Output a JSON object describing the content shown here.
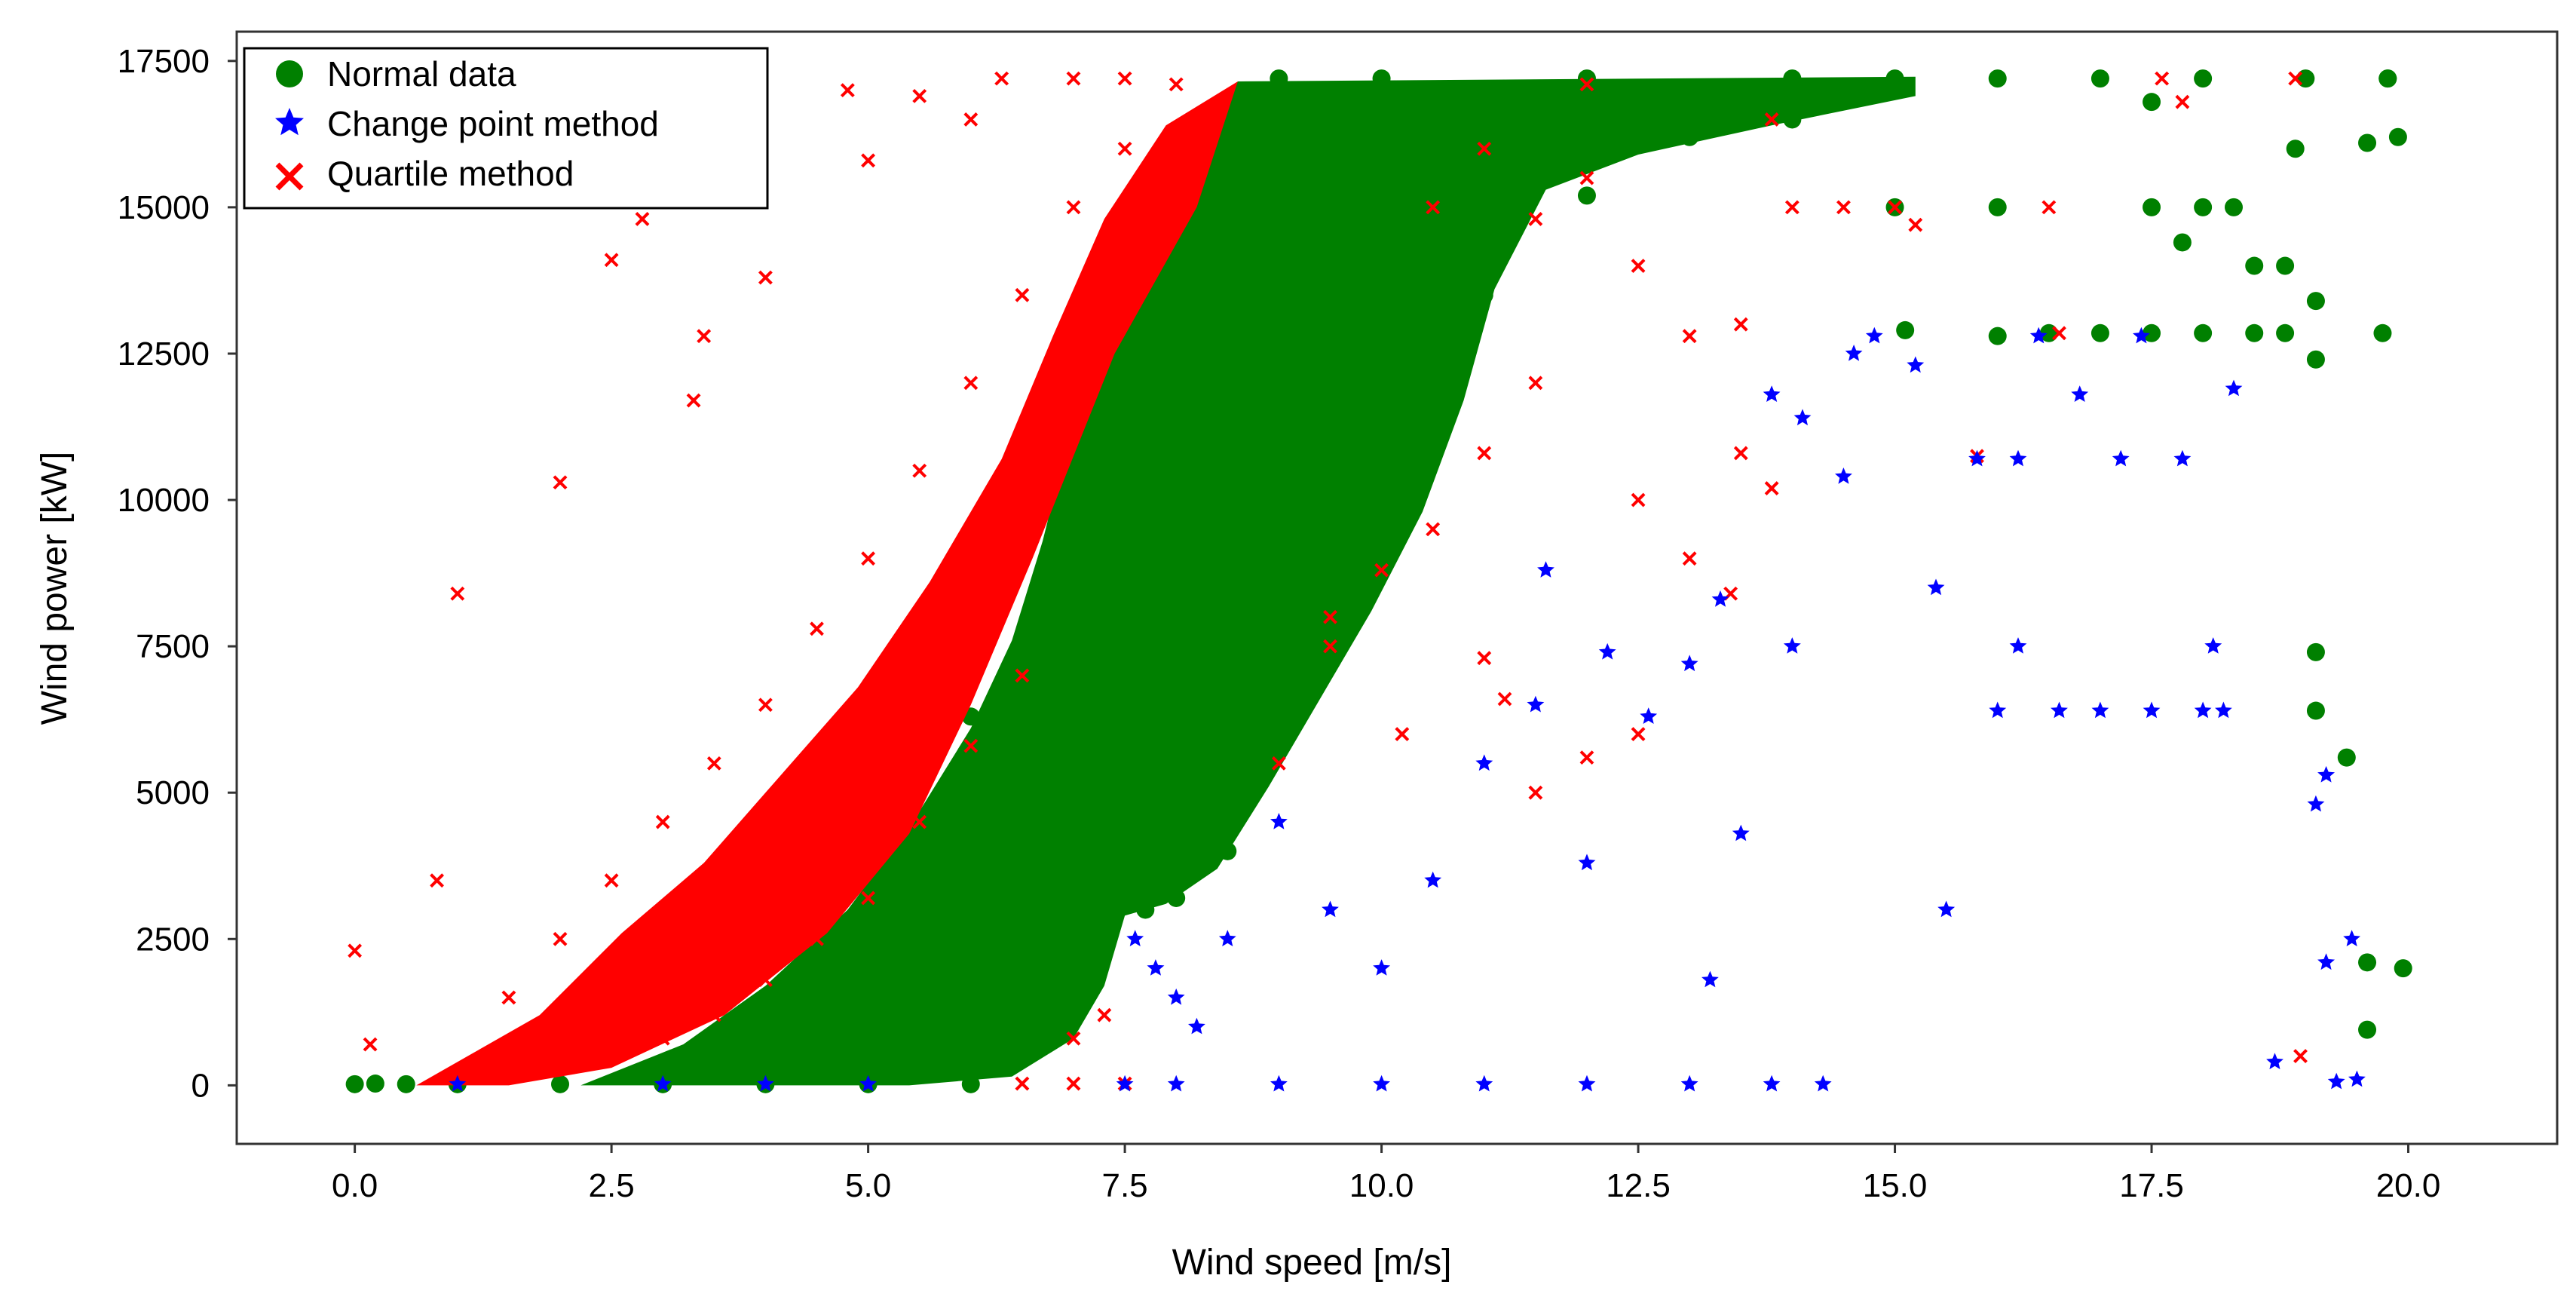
{
  "chart_data": {
    "type": "scatter",
    "title": "",
    "xlabel": "Wind speed [m/s]",
    "ylabel": "Wind power [kW]",
    "xlim": [
      -1.15,
      21.45
    ],
    "ylim": [
      -1000,
      18000
    ],
    "xticks": [
      0.0,
      2.5,
      5.0,
      7.5,
      10.0,
      12.5,
      15.0,
      17.5,
      20.0
    ],
    "xtick_labels": [
      "0.0",
      "2.5",
      "5.0",
      "7.5",
      "10.0",
      "12.5",
      "15.0",
      "17.5",
      "20.0"
    ],
    "yticks": [
      0,
      2500,
      5000,
      7500,
      10000,
      12500,
      15000,
      17500
    ],
    "ytick_labels": [
      "0",
      "2500",
      "5000",
      "7500",
      "10000",
      "12500",
      "15000",
      "17500"
    ],
    "grid": false,
    "legend_position": "top-left",
    "series": [
      {
        "name": "Normal data",
        "marker": "circle",
        "color": "#008000",
        "points": [
          [
            0.0,
            20
          ],
          [
            0.2,
            30
          ],
          [
            0.5,
            20
          ],
          [
            1.0,
            20
          ],
          [
            2.0,
            20
          ],
          [
            3.0,
            20
          ],
          [
            4.0,
            20
          ],
          [
            5.0,
            20
          ],
          [
            6.0,
            20
          ],
          [
            3.0,
            900
          ],
          [
            3.5,
            1500
          ],
          [
            4.0,
            2400
          ],
          [
            4.5,
            3200
          ],
          [
            5.0,
            4200
          ],
          [
            5.5,
            5200
          ],
          [
            6.0,
            6300
          ],
          [
            6.5,
            7600
          ],
          [
            6.5,
            9000
          ],
          [
            7.0,
            10500
          ],
          [
            7.0,
            12000
          ],
          [
            7.5,
            13200
          ],
          [
            8.0,
            15000
          ],
          [
            8.5,
            16800
          ],
          [
            9.0,
            17200
          ],
          [
            10.0,
            17200
          ],
          [
            12.0,
            17200
          ],
          [
            14.0,
            17200
          ],
          [
            15.0,
            17200
          ],
          [
            16.0,
            17200
          ],
          [
            17.0,
            17200
          ],
          [
            18.0,
            17200
          ],
          [
            19.0,
            17200
          ],
          [
            19.8,
            17200
          ],
          [
            8.5,
            4000
          ],
          [
            9.0,
            6000
          ],
          [
            9.5,
            8000
          ],
          [
            10.0,
            10500
          ],
          [
            10.5,
            12000
          ],
          [
            11.0,
            13500
          ],
          [
            12.0,
            15200
          ],
          [
            13.0,
            16200
          ],
          [
            14.0,
            16500
          ],
          [
            15.0,
            15000
          ],
          [
            16.0,
            15000
          ],
          [
            17.5,
            15000
          ],
          [
            18.0,
            15000
          ],
          [
            18.3,
            15000
          ],
          [
            15.1,
            12900
          ],
          [
            16.0,
            12800
          ],
          [
            16.5,
            12850
          ],
          [
            17.0,
            12850
          ],
          [
            17.5,
            12850
          ],
          [
            18.0,
            12850
          ],
          [
            18.5,
            12850
          ],
          [
            18.8,
            12850
          ],
          [
            18.8,
            14000
          ],
          [
            18.9,
            16000
          ],
          [
            19.1,
            13400
          ],
          [
            19.1,
            12400
          ],
          [
            19.1,
            7400
          ],
          [
            19.1,
            6400
          ],
          [
            19.4,
            5600
          ],
          [
            19.6,
            2100
          ],
          [
            19.6,
            950
          ],
          [
            19.75,
            12850
          ],
          [
            19.8,
            17200
          ],
          [
            19.9,
            16200
          ],
          [
            19.95,
            2000
          ],
          [
            19.6,
            16100
          ],
          [
            17.8,
            14400
          ],
          [
            17.5,
            16800
          ],
          [
            18.5,
            14000
          ],
          [
            7.7,
            3000
          ],
          [
            8.0,
            3200
          ],
          [
            7.0,
            1500
          ],
          [
            6.5,
            600
          ]
        ]
      },
      {
        "name": "Change point method",
        "marker": "star",
        "color": "#0000ff",
        "points": [
          [
            7.5,
            20
          ],
          [
            8.0,
            20
          ],
          [
            9.0,
            20
          ],
          [
            10.0,
            20
          ],
          [
            11.0,
            20
          ],
          [
            12.0,
            20
          ],
          [
            13.0,
            20
          ],
          [
            13.8,
            20
          ],
          [
            14.3,
            20
          ],
          [
            7.6,
            2500
          ],
          [
            7.8,
            2000
          ],
          [
            8.0,
            1500
          ],
          [
            8.2,
            1000
          ],
          [
            8.5,
            2500
          ],
          [
            9.0,
            4500
          ],
          [
            9.5,
            3000
          ],
          [
            10.0,
            2000
          ],
          [
            10.5,
            3500
          ],
          [
            11.0,
            5500
          ],
          [
            11.5,
            6500
          ],
          [
            11.6,
            8800
          ],
          [
            12.0,
            3800
          ],
          [
            12.2,
            7400
          ],
          [
            12.6,
            6300
          ],
          [
            13.0,
            7200
          ],
          [
            13.3,
            8300
          ],
          [
            13.5,
            4300
          ],
          [
            13.2,
            1800
          ],
          [
            13.8,
            11800
          ],
          [
            14.0,
            7500
          ],
          [
            14.1,
            11400
          ],
          [
            14.5,
            10400
          ],
          [
            14.6,
            12500
          ],
          [
            14.8,
            12800
          ],
          [
            15.2,
            12300
          ],
          [
            15.4,
            8500
          ],
          [
            15.5,
            3000
          ],
          [
            15.8,
            10700
          ],
          [
            16.0,
            6400
          ],
          [
            16.2,
            10700
          ],
          [
            16.2,
            7500
          ],
          [
            16.4,
            12800
          ],
          [
            16.6,
            6400
          ],
          [
            16.8,
            11800
          ],
          [
            17.0,
            6400
          ],
          [
            17.2,
            10700
          ],
          [
            17.5,
            6400
          ],
          [
            17.8,
            10700
          ],
          [
            17.4,
            12800
          ],
          [
            18.0,
            6400
          ],
          [
            18.1,
            7500
          ],
          [
            18.2,
            6400
          ],
          [
            18.3,
            11900
          ],
          [
            18.7,
            400
          ],
          [
            19.1,
            4800
          ],
          [
            19.2,
            5300
          ],
          [
            19.2,
            2100
          ],
          [
            19.3,
            60
          ],
          [
            19.45,
            2500
          ],
          [
            19.5,
            100
          ],
          [
            3.0,
            20
          ],
          [
            4.0,
            20
          ],
          [
            5.0,
            20
          ],
          [
            1.0,
            20
          ]
        ]
      },
      {
        "name": "Quartile method",
        "marker": "x",
        "color": "#ff0000",
        "points": [
          [
            0.0,
            2300
          ],
          [
            0.15,
            700
          ],
          [
            0.8,
            3500
          ],
          [
            1.0,
            8400
          ],
          [
            2.0,
            10300
          ],
          [
            2.5,
            14100
          ],
          [
            2.8,
            14800
          ],
          [
            3.3,
            11700
          ],
          [
            3.4,
            12800
          ],
          [
            4.0,
            13800
          ],
          [
            5.0,
            15800
          ],
          [
            4.8,
            17000
          ],
          [
            5.5,
            16900
          ],
          [
            6.0,
            16500
          ],
          [
            6.3,
            17200
          ],
          [
            7.0,
            17200
          ],
          [
            7.5,
            17200
          ],
          [
            8.0,
            17100
          ],
          [
            8.2,
            15500
          ],
          [
            1.5,
            1500
          ],
          [
            2.0,
            2500
          ],
          [
            2.5,
            3500
          ],
          [
            3.0,
            4500
          ],
          [
            3.5,
            5500
          ],
          [
            4.0,
            6500
          ],
          [
            4.5,
            7800
          ],
          [
            5.0,
            9000
          ],
          [
            5.5,
            10500
          ],
          [
            6.0,
            12000
          ],
          [
            6.5,
            13500
          ],
          [
            7.0,
            15000
          ],
          [
            7.5,
            16000
          ],
          [
            2.5,
            500
          ],
          [
            3.0,
            800
          ],
          [
            3.5,
            1200
          ],
          [
            4.0,
            1800
          ],
          [
            4.5,
            2500
          ],
          [
            5.0,
            3200
          ],
          [
            5.5,
            4500
          ],
          [
            6.0,
            5800
          ],
          [
            6.5,
            7000
          ],
          [
            6.5,
            30
          ],
          [
            7.0,
            30
          ],
          [
            7.5,
            30
          ],
          [
            7.0,
            800
          ],
          [
            7.3,
            1200
          ],
          [
            9.0,
            5500
          ],
          [
            9.5,
            7500
          ],
          [
            10.0,
            8800
          ],
          [
            10.5,
            9500
          ],
          [
            11.0,
            10800
          ],
          [
            11.5,
            12000
          ],
          [
            11.5,
            14800
          ],
          [
            12.0,
            15500
          ],
          [
            12.5,
            14000
          ],
          [
            12.5,
            10000
          ],
          [
            13.0,
            12800
          ],
          [
            13.5,
            13000
          ],
          [
            13.0,
            9000
          ],
          [
            13.5,
            10800
          ],
          [
            13.8,
            10200
          ],
          [
            13.4,
            8400
          ],
          [
            13.8,
            16500
          ],
          [
            14.0,
            15000
          ],
          [
            14.5,
            15000
          ],
          [
            15.0,
            15000
          ],
          [
            15.2,
            14700
          ],
          [
            16.5,
            15000
          ],
          [
            16.6,
            12850
          ],
          [
            15.8,
            10750
          ],
          [
            17.8,
            16800
          ],
          [
            17.6,
            17200
          ],
          [
            18.9,
            17200
          ],
          [
            18.95,
            500
          ],
          [
            12.0,
            17100
          ],
          [
            11.0,
            16000
          ],
          [
            10.5,
            15000
          ],
          [
            9.5,
            8000
          ],
          [
            10.2,
            6000
          ],
          [
            11.0,
            7300
          ],
          [
            11.2,
            6600
          ],
          [
            12.0,
            5600
          ],
          [
            11.5,
            5000
          ],
          [
            12.5,
            6000
          ]
        ]
      }
    ]
  }
}
